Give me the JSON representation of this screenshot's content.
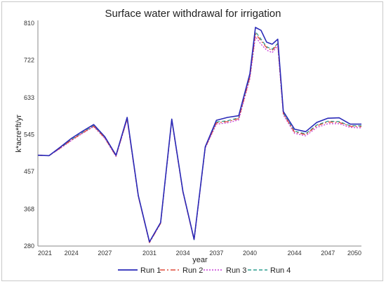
{
  "chart_data": {
    "type": "line",
    "title": "Surface water withdrawal for irrigation",
    "xlabel": "year",
    "ylabel": "k*acre*ft/yr",
    "xlim": [
      2021,
      2050
    ],
    "ylim": [
      280,
      810
    ],
    "xticks": [
      2021,
      2024,
      2027,
      2031,
      2034,
      2037,
      2040,
      2044,
      2047,
      2050
    ],
    "yticks": [
      280,
      368,
      457,
      545,
      633,
      722,
      810
    ],
    "grid": false,
    "legend": "bottom",
    "x": [
      2021,
      2022,
      2023,
      2024,
      2025,
      2026,
      2027,
      2028,
      2029,
      2030,
      2031,
      2032,
      2033,
      2034,
      2035,
      2036,
      2037,
      2038,
      2039,
      2040,
      2040.5,
      2041,
      2041.5,
      2042,
      2042.5,
      2043,
      2044,
      2045,
      2046,
      2047,
      2048,
      2049,
      2050
    ],
    "series": [
      {
        "name": "Run 1",
        "color": "#2a2ab8",
        "dash": "solid",
        "values": [
          496,
          495,
          515,
          536,
          553,
          569,
          540,
          496,
          586,
          400,
          290,
          336,
          582,
          410,
          296,
          516,
          579,
          586,
          590,
          690,
          800,
          793,
          765,
          760,
          772,
          600,
          558,
          552,
          574,
          584,
          585,
          570,
          570
        ]
      },
      {
        "name": "Run 2",
        "color": "#e04a3a",
        "dash": "dashdot",
        "values": [
          496,
          495,
          513,
          532,
          549,
          565,
          537,
          494,
          582,
          398,
          288,
          334,
          580,
          408,
          294,
          514,
          573,
          576,
          583,
          682,
          785,
          768,
          752,
          745,
          760,
          595,
          551,
          545,
          566,
          575,
          574,
          565,
          564
        ]
      },
      {
        "name": "Run 3",
        "color": "#c93fd8",
        "dash": "dotted",
        "values": [
          496,
          495,
          512,
          531,
          548,
          564,
          536,
          493,
          581,
          398,
          288,
          334,
          579,
          408,
          294,
          513,
          570,
          573,
          580,
          678,
          778,
          760,
          746,
          740,
          756,
          592,
          548,
          542,
          562,
          571,
          571,
          562,
          561
        ]
      },
      {
        "name": "Run 4",
        "color": "#2e9d8f",
        "dash": "dashed",
        "values": [
          496,
          495,
          513,
          533,
          550,
          566,
          538,
          495,
          583,
          399,
          289,
          335,
          580,
          409,
          295,
          515,
          575,
          578,
          585,
          684,
          790,
          772,
          754,
          748,
          762,
          596,
          553,
          547,
          568,
          577,
          576,
          566,
          566
        ]
      }
    ]
  }
}
